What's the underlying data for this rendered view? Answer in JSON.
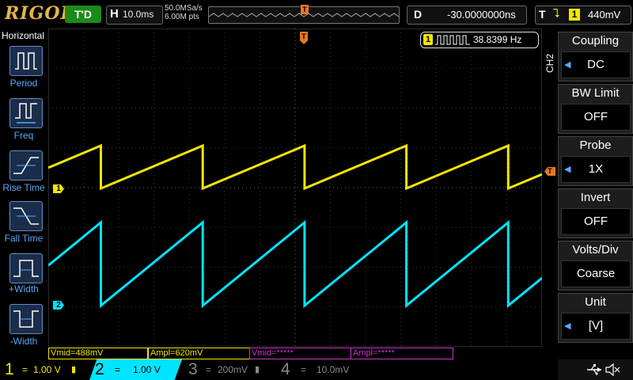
{
  "brand": "RIGOL",
  "top": {
    "trig_status": "T'D",
    "horiz_key": "H",
    "horiz_scale": "10.0ms",
    "sample_rate": "50.0MSa/s",
    "mem_depth": "6.00M pts",
    "trig_pos_marker": "T",
    "delay_key": "D",
    "delay_value": "-30.0000000ns",
    "trig_key": "T",
    "trig_edge": "⮧",
    "trig_source": "1",
    "trig_level": "440mV"
  },
  "left_menu": {
    "title": "Horizontal",
    "items": [
      {
        "label": "Period"
      },
      {
        "label": "Freq"
      },
      {
        "label": "Rise Time"
      },
      {
        "label": "Fall Time"
      },
      {
        "label": "+Width"
      },
      {
        "label": "-Width"
      }
    ]
  },
  "freq_readout": {
    "channel": "1",
    "value": "38.8399 Hz"
  },
  "right_menu": {
    "channel_tab": "CH2",
    "items": [
      {
        "title": "Coupling",
        "value": "DC",
        "arrow": true
      },
      {
        "title": "BW Limit",
        "value": "OFF",
        "arrow": false
      },
      {
        "title": "Probe",
        "value": "1X",
        "arrow": true
      },
      {
        "title": "Invert",
        "value": "OFF",
        "arrow": false
      },
      {
        "title": "Volts/Div",
        "value": "Coarse",
        "arrow": false
      },
      {
        "title": "Unit",
        "value": "[V]",
        "arrow": true
      }
    ]
  },
  "markers": {
    "ch1": "1",
    "ch2": "2",
    "trigger_level": "T",
    "trigger_time": "T"
  },
  "measurements": [
    {
      "text": "Vmid=488mV",
      "color": "#f2e600"
    },
    {
      "text": "Ampl=620mV",
      "color": "#f2e600"
    },
    {
      "text": "Vmid=*****",
      "color": "#cc33cc"
    },
    {
      "text": "Ampl=*****",
      "color": "#cc33cc"
    }
  ],
  "bottom": {
    "channels": [
      {
        "num": "1",
        "coupling": "=",
        "scale": "1.00 V",
        "color": "#f2e600",
        "active": false
      },
      {
        "num": "2",
        "coupling": "=",
        "scale": "1.00 V",
        "color": "#00e5ff",
        "active": true
      },
      {
        "num": "3",
        "coupling": "=",
        "scale": "200mV",
        "color": "#888888",
        "active": false
      },
      {
        "num": "4",
        "coupling": "=",
        "scale": "10.0mV",
        "color": "#888888",
        "active": false
      }
    ]
  },
  "colors": {
    "ch1": "#f2e600",
    "ch2": "#00e5ff",
    "trigger": "#e87722",
    "menu_accent": "#59a9ff"
  },
  "icons": [
    "usb-icon",
    "mute-speaker-icon"
  ]
}
